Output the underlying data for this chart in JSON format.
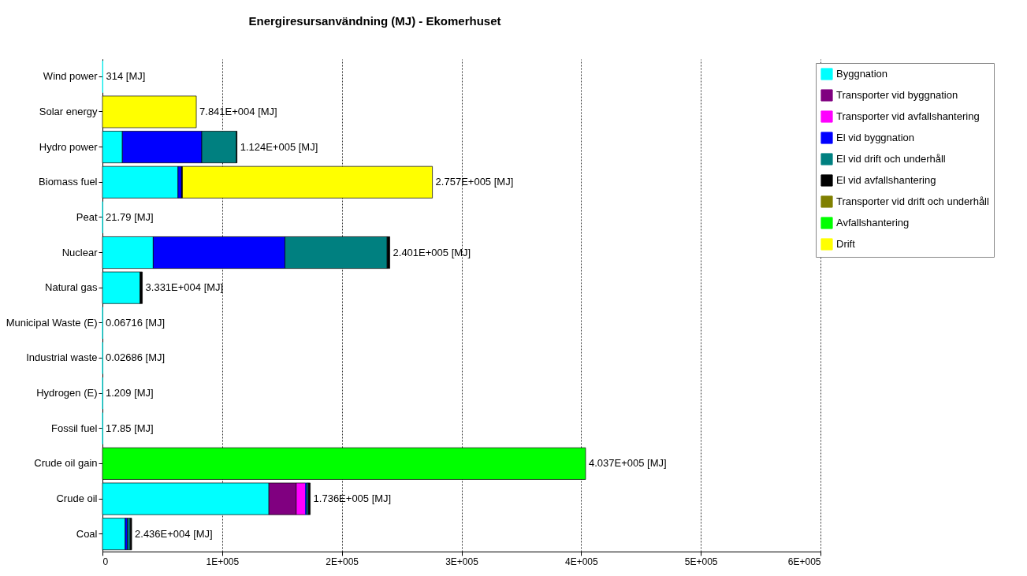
{
  "chart_data": {
    "type": "bar",
    "orientation": "horizontal",
    "stacked": true,
    "title": "Energiresursanvändning  (MJ) - Ekomerhuset",
    "categories": [
      "Wind power",
      "Solar energy",
      "Hydro power",
      "Biomass fuel",
      "Peat",
      "Nuclear",
      "Natural gas",
      "Municipal Waste (E)",
      "Industrial waste",
      "Hydrogen (E)",
      "Fossil fuel",
      "Crude oil gain",
      "Crude oil",
      "Coal"
    ],
    "series": [
      {
        "name": "Byggnation",
        "color": "#00ffff",
        "values": [
          314,
          null,
          16600,
          63100,
          21.79,
          42400,
          31400,
          0.06716,
          0.02686,
          1.209,
          17.85,
          null,
          139100,
          19000
        ]
      },
      {
        "name": "Transporter vid byggnation",
        "color": "#800080",
        "values": [
          null,
          null,
          null,
          null,
          null,
          null,
          null,
          null,
          null,
          null,
          null,
          null,
          22800,
          null
        ]
      },
      {
        "name": "Transporter vid avfallshantering",
        "color": "#ff00ff",
        "values": [
          null,
          null,
          null,
          null,
          null,
          null,
          null,
          null,
          null,
          null,
          null,
          null,
          7700,
          null
        ]
      },
      {
        "name": "El vid byggnation",
        "color": "#0000ff",
        "values": [
          null,
          null,
          66400,
          3000,
          null,
          110100,
          null,
          null,
          null,
          null,
          null,
          null,
          800,
          1900
        ]
      },
      {
        "name": "El vid drift och underhåll",
        "color": "#008080",
        "values": [
          null,
          null,
          28900,
          null,
          null,
          85400,
          null,
          null,
          null,
          null,
          null,
          null,
          1600,
          2300
        ]
      },
      {
        "name": "El vid avfallshantering",
        "color": "#000000",
        "values": [
          null,
          null,
          500,
          700,
          null,
          2200,
          1900,
          null,
          null,
          null,
          null,
          null,
          1600,
          1200
        ]
      },
      {
        "name": "Transporter vid drift och underhåll",
        "color": "#808000",
        "values": [
          null,
          null,
          null,
          null,
          null,
          null,
          null,
          null,
          null,
          null,
          null,
          null,
          null,
          null
        ]
      },
      {
        "name": "Avfallshantering",
        "color": "#00ff00",
        "values": [
          null,
          null,
          null,
          null,
          null,
          null,
          null,
          null,
          null,
          null,
          null,
          403700,
          null,
          null
        ]
      },
      {
        "name": "Drift",
        "color": "#ffff00",
        "values": [
          null,
          78400,
          null,
          208900,
          null,
          null,
          null,
          null,
          null,
          null,
          null,
          null,
          null,
          null
        ]
      }
    ],
    "totals": [
      "314 [MJ]",
      "7.841E+004 [MJ]",
      "1.124E+005 [MJ]",
      "2.757E+005 [MJ]",
      "21.79 [MJ]",
      "2.401E+005 [MJ]",
      "3.331E+004 [MJ]",
      "0.06716 [MJ]",
      "0.02686 [MJ]",
      "1.209 [MJ]",
      "17.85 [MJ]",
      "4.037E+005 [MJ]",
      "1.736E+005 [MJ]",
      "2.436E+004 [MJ]"
    ],
    "xlim": [
      0,
      600000
    ],
    "xticks": [
      0,
      {
        "value": 100000,
        "label": "1E+005"
      },
      {
        "value": 200000,
        "label": "2E+005"
      },
      {
        "value": 300000,
        "label": "3E+005"
      },
      {
        "value": 400000,
        "label": "4E+005"
      },
      {
        "value": 500000,
        "label": "5E+005"
      },
      {
        "value": 600000,
        "label": "6E+005"
      }
    ],
    "grid": "x",
    "legend": "top right"
  }
}
